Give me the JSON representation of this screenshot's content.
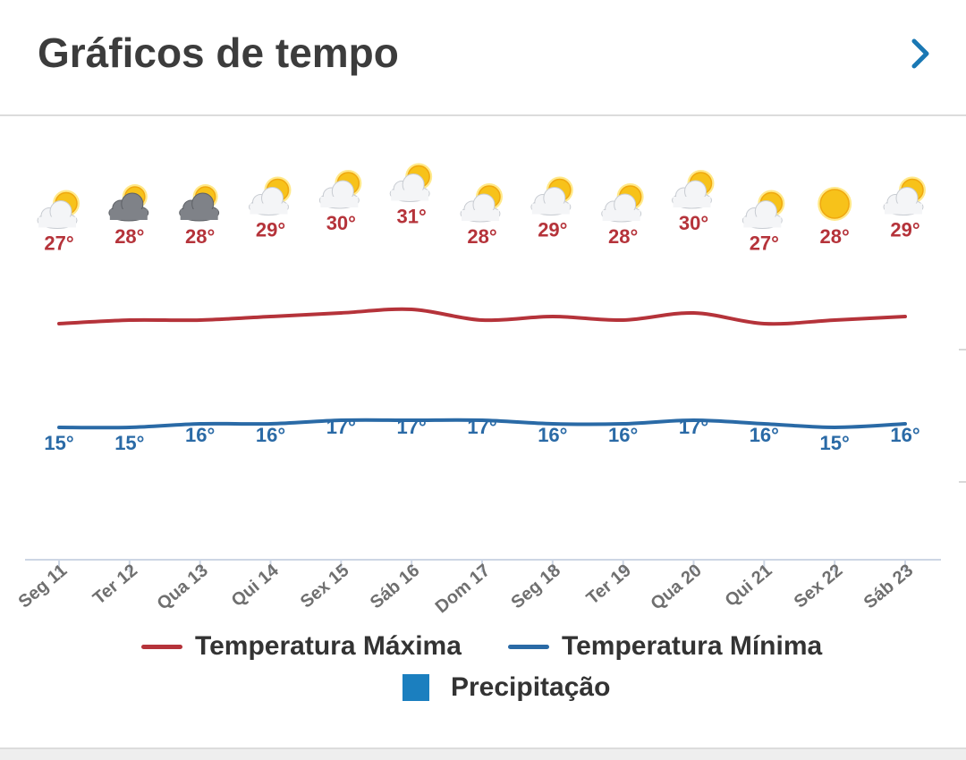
{
  "header": {
    "title": "Gráficos de tempo",
    "next_icon": "chevron-right-icon"
  },
  "colors": {
    "max": "#b5333a",
    "min": "#2a6aa6",
    "precip": "#1b7fbf",
    "axis": "#cdd6e4",
    "tick_text": "#6f6f6f"
  },
  "chart_data": {
    "type": "line",
    "categories": [
      "Seg 11",
      "Ter 12",
      "Qua 13",
      "Qui 14",
      "Sex 15",
      "Sáb 16",
      "Dom 17",
      "Seg 18",
      "Ter 19",
      "Qua 20",
      "Qui 21",
      "Sex 22",
      "Sáb 23"
    ],
    "icons": [
      "partly-cloudy",
      "cloudy",
      "cloudy",
      "partly-cloudy",
      "partly-cloudy",
      "partly-cloudy",
      "partly-cloudy",
      "partly-cloudy",
      "partly-cloudy",
      "partly-cloudy",
      "partly-cloudy",
      "sunny",
      "partly-cloudy"
    ],
    "series": [
      {
        "name": "Temperatura Máxima",
        "values": [
          27,
          28,
          28,
          29,
          30,
          31,
          28,
          29,
          28,
          30,
          27,
          28,
          29
        ],
        "labels": [
          "27°",
          "28°",
          "28°",
          "29°",
          "30°",
          "31°",
          "28°",
          "29°",
          "28°",
          "30°",
          "27°",
          "28°",
          "29°"
        ]
      },
      {
        "name": "Temperatura Mínima",
        "values": [
          15,
          15,
          16,
          16,
          17,
          17,
          17,
          16,
          16,
          17,
          16,
          15,
          16
        ],
        "labels": [
          "15°",
          "15°",
          "16°",
          "16°",
          "17°",
          "17°",
          "17°",
          "16°",
          "16°",
          "17°",
          "16°",
          "15°",
          "16°"
        ]
      }
    ],
    "precipitation": {
      "name": "Precipitação",
      "values": []
    },
    "legend": [
      "Temperatura Máxima",
      "Temperatura Mínima",
      "Precipitação"
    ],
    "legend_position": "bottom",
    "grid": false
  }
}
